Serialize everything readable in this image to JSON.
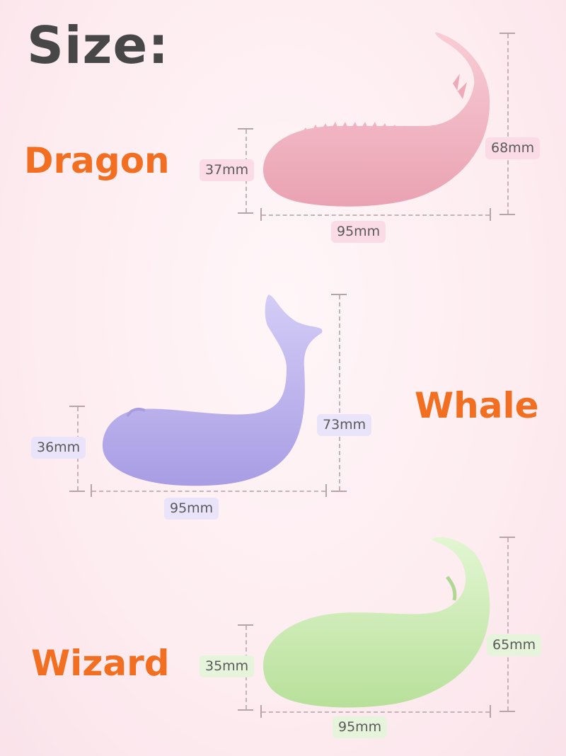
{
  "title": "Size:",
  "colors": {
    "accent": "#f26f22",
    "title": "#474747",
    "dragon": "#f2b6c2",
    "whale": "#b9b0ec",
    "wizard": "#cbeab2"
  },
  "variants": [
    {
      "name": "Dragon",
      "height_short": "37mm",
      "height_tall": "68mm",
      "length": "95mm"
    },
    {
      "name": "Whale",
      "height_short": "36mm",
      "height_tall": "73mm",
      "length": "95mm"
    },
    {
      "name": "Wizard",
      "height_short": "35mm",
      "height_tall": "65mm",
      "length": "95mm"
    }
  ]
}
